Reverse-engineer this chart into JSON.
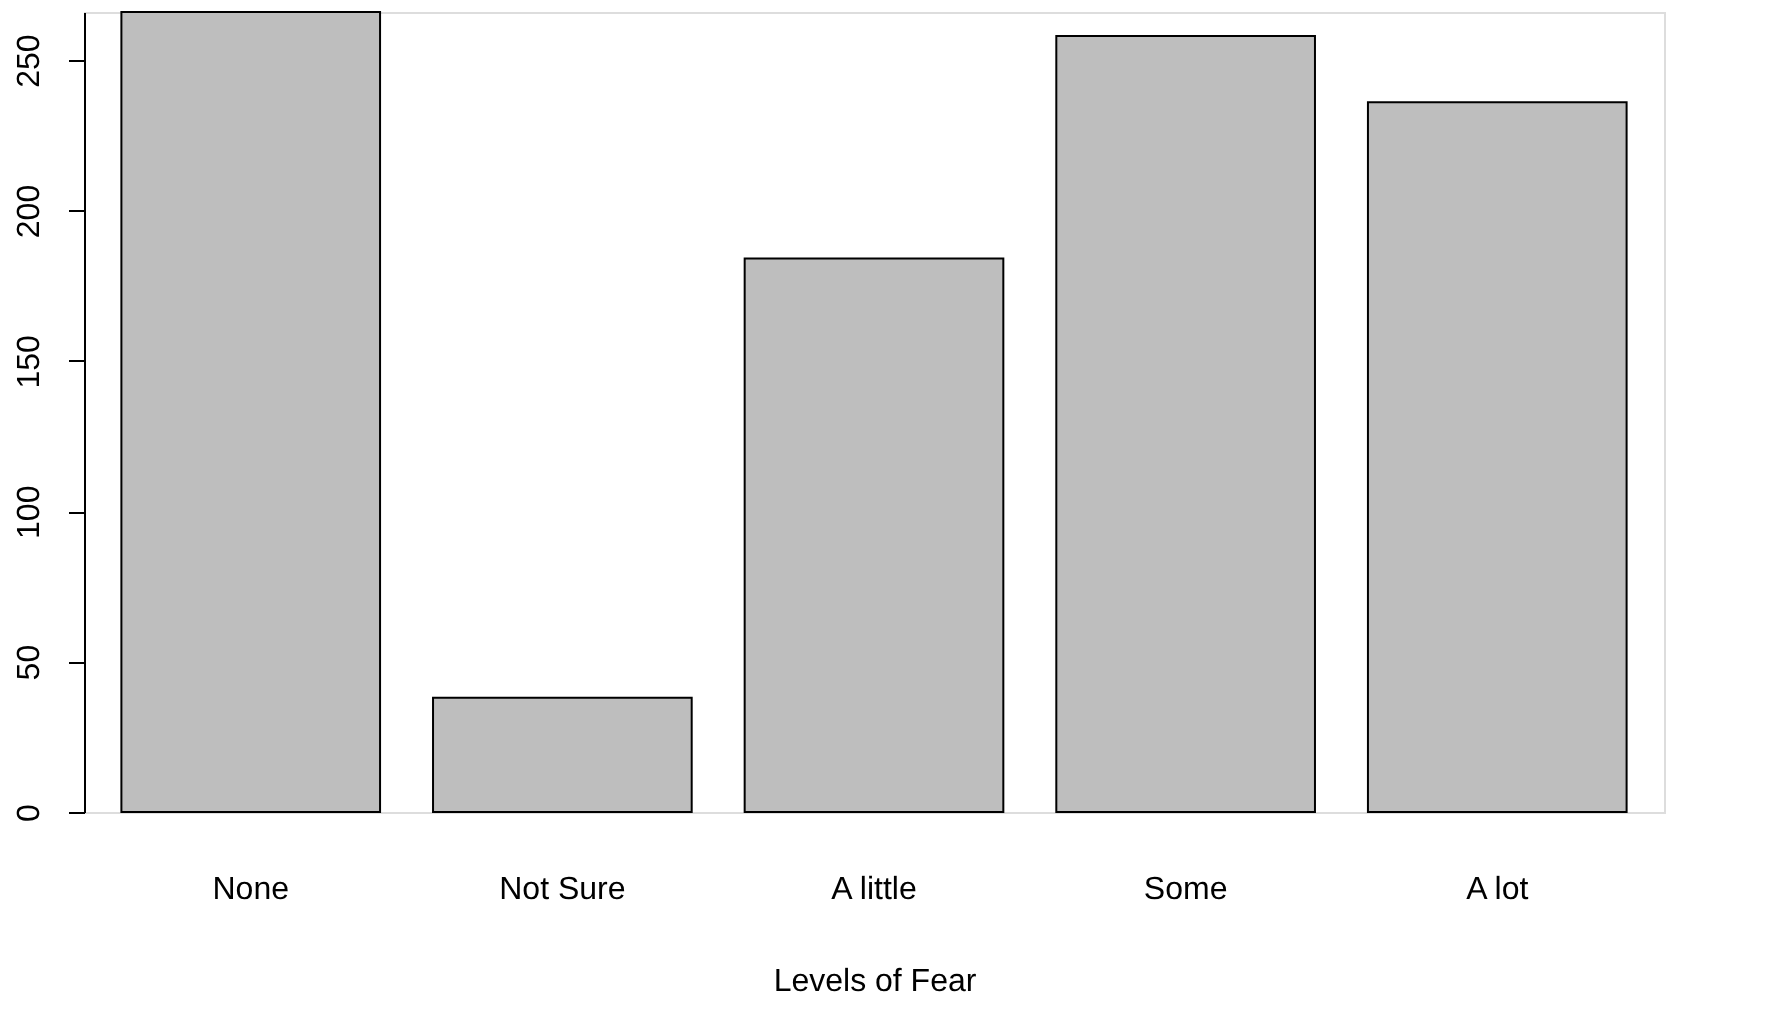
{
  "chart_data": {
    "type": "bar",
    "xlabel": "Levels of Fear",
    "categories": [
      "None",
      "Not Sure",
      "A little",
      "Some",
      "A lot"
    ],
    "values": [
      266,
      38,
      184,
      258,
      236
    ],
    "color": "#bebebe",
    "ylim": [
      0,
      266
    ],
    "yticks": [
      0,
      50,
      100,
      150,
      200,
      250
    ],
    "grid": false
  }
}
